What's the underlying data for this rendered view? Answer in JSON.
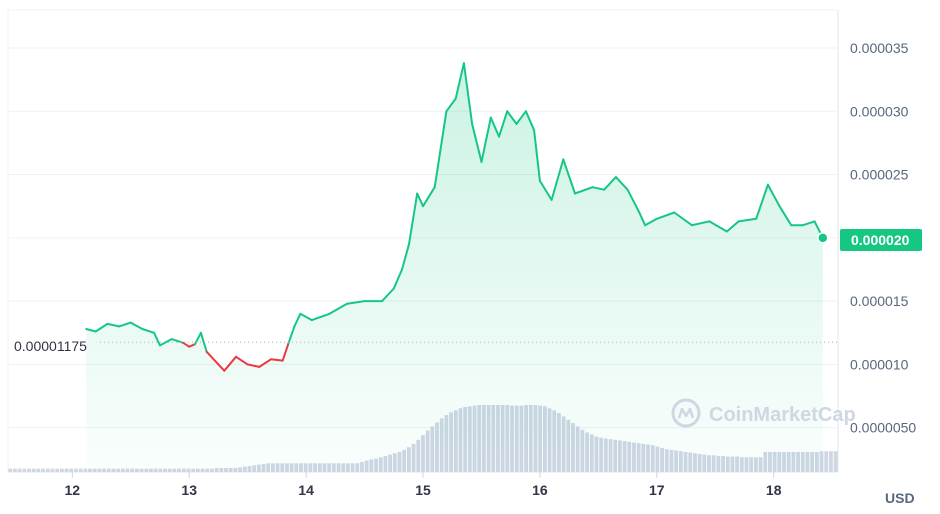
{
  "chart_data": {
    "type": "area",
    "currency": "USD",
    "reference_label": "0.00001175",
    "reference_value": 1.175e-05,
    "current_price_label": "0.000020",
    "current_price": 2e-05,
    "watermark": "CoinMarketCap",
    "ylim": [
      1.5e-06,
      3.8e-05
    ],
    "yticks": [
      {
        "value": 5e-06,
        "label": "0.0000050"
      },
      {
        "value": 1e-05,
        "label": "0.000010"
      },
      {
        "value": 1.5e-05,
        "label": "0.000015"
      },
      {
        "value": 2e-05,
        "label": "0.000020"
      },
      {
        "value": 2.5e-05,
        "label": "0.000025"
      },
      {
        "value": 3e-05,
        "label": "0.000030"
      },
      {
        "value": 3.5e-05,
        "label": "0.000035"
      }
    ],
    "xlim": [
      11.45,
      18.55
    ],
    "xticks": [
      {
        "value": 12,
        "label": "12"
      },
      {
        "value": 13,
        "label": "13"
      },
      {
        "value": 14,
        "label": "14"
      },
      {
        "value": 15,
        "label": "15"
      },
      {
        "value": 16,
        "label": "16"
      },
      {
        "value": 17,
        "label": "17"
      },
      {
        "value": 18,
        "label": "18"
      }
    ],
    "price_series": [
      [
        12.12,
        1.28e-05
      ],
      [
        12.2,
        1.26e-05
      ],
      [
        12.3,
        1.32e-05
      ],
      [
        12.4,
        1.3e-05
      ],
      [
        12.5,
        1.33e-05
      ],
      [
        12.6,
        1.28e-05
      ],
      [
        12.7,
        1.25e-05
      ],
      [
        12.75,
        1.15e-05
      ],
      [
        12.85,
        1.2e-05
      ],
      [
        12.95,
        1.17e-05
      ],
      [
        13.0,
        1.14e-05
      ],
      [
        13.05,
        1.16e-05
      ],
      [
        13.1,
        1.25e-05
      ],
      [
        13.15,
        1.1e-05
      ],
      [
        13.25,
        1e-05
      ],
      [
        13.3,
        9.5e-06
      ],
      [
        13.4,
        1.06e-05
      ],
      [
        13.5,
        1e-05
      ],
      [
        13.6,
        9.8e-06
      ],
      [
        13.7,
        1.04e-05
      ],
      [
        13.8,
        1.03e-05
      ],
      [
        13.85,
        1.17e-05
      ],
      [
        13.9,
        1.3e-05
      ],
      [
        13.95,
        1.4e-05
      ],
      [
        14.05,
        1.35e-05
      ],
      [
        14.2,
        1.4e-05
      ],
      [
        14.35,
        1.48e-05
      ],
      [
        14.5,
        1.5e-05
      ],
      [
        14.65,
        1.5e-05
      ],
      [
        14.75,
        1.6e-05
      ],
      [
        14.82,
        1.75e-05
      ],
      [
        14.88,
        1.95e-05
      ],
      [
        14.95,
        2.35e-05
      ],
      [
        15.0,
        2.25e-05
      ],
      [
        15.1,
        2.4e-05
      ],
      [
        15.2,
        3e-05
      ],
      [
        15.28,
        3.1e-05
      ],
      [
        15.35,
        3.38e-05
      ],
      [
        15.42,
        2.9e-05
      ],
      [
        15.5,
        2.6e-05
      ],
      [
        15.58,
        2.95e-05
      ],
      [
        15.65,
        2.8e-05
      ],
      [
        15.72,
        3e-05
      ],
      [
        15.8,
        2.9e-05
      ],
      [
        15.88,
        3e-05
      ],
      [
        15.95,
        2.85e-05
      ],
      [
        16.0,
        2.45e-05
      ],
      [
        16.1,
        2.3e-05
      ],
      [
        16.2,
        2.62e-05
      ],
      [
        16.3,
        2.35e-05
      ],
      [
        16.45,
        2.4e-05
      ],
      [
        16.55,
        2.38e-05
      ],
      [
        16.65,
        2.48e-05
      ],
      [
        16.75,
        2.38e-05
      ],
      [
        16.85,
        2.2e-05
      ],
      [
        16.9,
        2.1e-05
      ],
      [
        17.0,
        2.15e-05
      ],
      [
        17.15,
        2.2e-05
      ],
      [
        17.3,
        2.1e-05
      ],
      [
        17.45,
        2.13e-05
      ],
      [
        17.6,
        2.05e-05
      ],
      [
        17.7,
        2.13e-05
      ],
      [
        17.85,
        2.15e-05
      ],
      [
        17.95,
        2.42e-05
      ],
      [
        18.05,
        2.25e-05
      ],
      [
        18.15,
        2.1e-05
      ],
      [
        18.25,
        2.1e-05
      ],
      [
        18.35,
        2.13e-05
      ],
      [
        18.42,
        2e-05
      ]
    ],
    "volume_series": [
      0.05,
      0.05,
      0.05,
      0.05,
      0.05,
      0.05,
      0.05,
      0.05,
      0.05,
      0.05,
      0.05,
      0.05,
      0.05,
      0.05,
      0.05,
      0.05,
      0.05,
      0.05,
      0.05,
      0.05,
      0.05,
      0.05,
      0.05,
      0.05,
      0.05,
      0.05,
      0.05,
      0.05,
      0.05,
      0.05,
      0.05,
      0.05,
      0.05,
      0.05,
      0.05,
      0.05,
      0.05,
      0.05,
      0.05,
      0.05,
      0.05,
      0.05,
      0.05,
      0.05,
      0.06,
      0.06,
      0.06,
      0.06,
      0.06,
      0.07,
      0.08,
      0.09,
      0.1,
      0.11,
      0.12,
      0.13,
      0.13,
      0.13,
      0.13,
      0.13,
      0.13,
      0.13,
      0.13,
      0.13,
      0.13,
      0.13,
      0.13,
      0.13,
      0.13,
      0.13,
      0.13,
      0.13,
      0.13,
      0.13,
      0.13,
      0.15,
      0.17,
      0.19,
      0.2,
      0.22,
      0.24,
      0.26,
      0.28,
      0.3,
      0.33,
      0.37,
      0.42,
      0.48,
      0.55,
      0.62,
      0.68,
      0.74,
      0.8,
      0.85,
      0.89,
      0.92,
      0.95,
      0.97,
      0.98,
      0.99,
      1.0,
      1.0,
      1.0,
      1.0,
      1.0,
      1.0,
      1.0,
      0.99,
      0.99,
      0.99,
      1.0,
      1.0,
      1.0,
      0.99,
      0.98,
      0.95,
      0.92,
      0.88,
      0.83,
      0.78,
      0.73,
      0.68,
      0.63,
      0.59,
      0.56,
      0.53,
      0.51,
      0.5,
      0.49,
      0.48,
      0.47,
      0.46,
      0.45,
      0.44,
      0.43,
      0.42,
      0.41,
      0.4,
      0.38,
      0.36,
      0.34,
      0.33,
      0.32,
      0.31,
      0.3,
      0.29,
      0.28,
      0.27,
      0.26,
      0.25,
      0.25,
      0.24,
      0.24,
      0.23,
      0.23,
      0.23,
      0.22,
      0.22,
      0.22,
      0.22,
      0.22,
      0.3,
      0.3,
      0.3,
      0.3,
      0.3,
      0.3,
      0.3,
      0.3,
      0.3,
      0.3,
      0.3,
      0.3,
      0.31,
      0.31,
      0.31,
      0.31
    ],
    "colors": {
      "up_line": "#16c784",
      "down_line": "#ea3943",
      "area_fill": "#16c784",
      "grid": "#eff2f5",
      "volume_bar": "#cfd6e4",
      "badge": "#16c784"
    }
  }
}
